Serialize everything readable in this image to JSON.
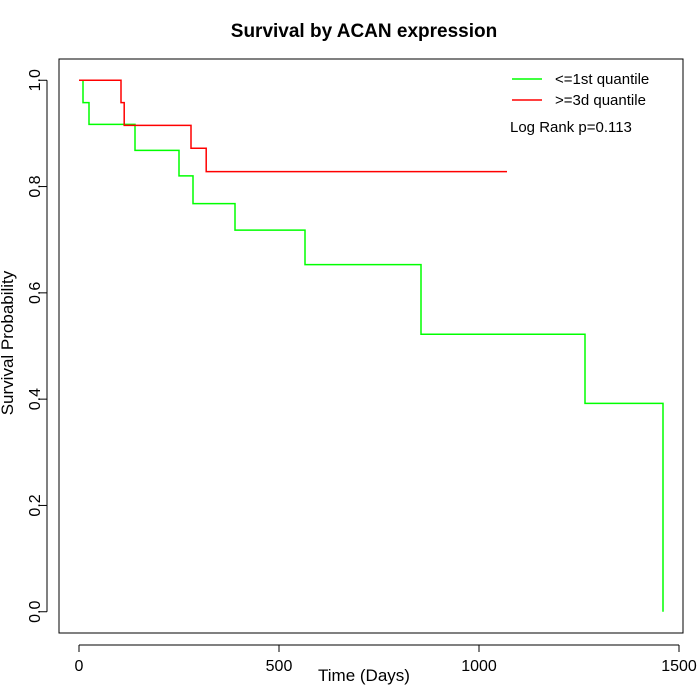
{
  "chart_data": {
    "type": "line",
    "step": true,
    "title": "Survival by ACAN expression",
    "xlabel": "Time (Days)",
    "ylabel": "Survival Probability",
    "xlim": [
      -50,
      1510
    ],
    "ylim": [
      -0.04,
      1.04
    ],
    "x_ticks": [
      0,
      500,
      1000,
      1500
    ],
    "y_ticks": [
      0.0,
      0.2,
      0.4,
      0.6,
      0.8,
      1.0
    ],
    "x_tick_labels": [
      "0",
      "500",
      "1000",
      "1500"
    ],
    "y_tick_labels": [
      "0.0",
      "0.2",
      "0.4",
      "0.6",
      "0.8",
      "1.0"
    ],
    "grid": false,
    "legend_position": "top-right",
    "annotation": "Log Rank p=0.113",
    "series": [
      {
        "name": "<=1st quantile",
        "color": "#00ff00",
        "x": [
          5,
          10,
          25,
          130,
          140,
          250,
          285,
          390,
          565,
          855,
          1265,
          1460,
          1460
        ],
        "y": [
          1.0,
          0.958,
          0.917,
          0.917,
          0.868,
          0.82,
          0.768,
          0.718,
          0.653,
          0.522,
          0.392,
          0.196,
          0.0
        ]
      },
      {
        "name": ">=3d quantile",
        "color": "#ff0000",
        "x": [
          0,
          105,
          113,
          280,
          318,
          1070
        ],
        "y": [
          1.0,
          0.958,
          0.915,
          0.872,
          0.828,
          0.828
        ]
      }
    ]
  }
}
